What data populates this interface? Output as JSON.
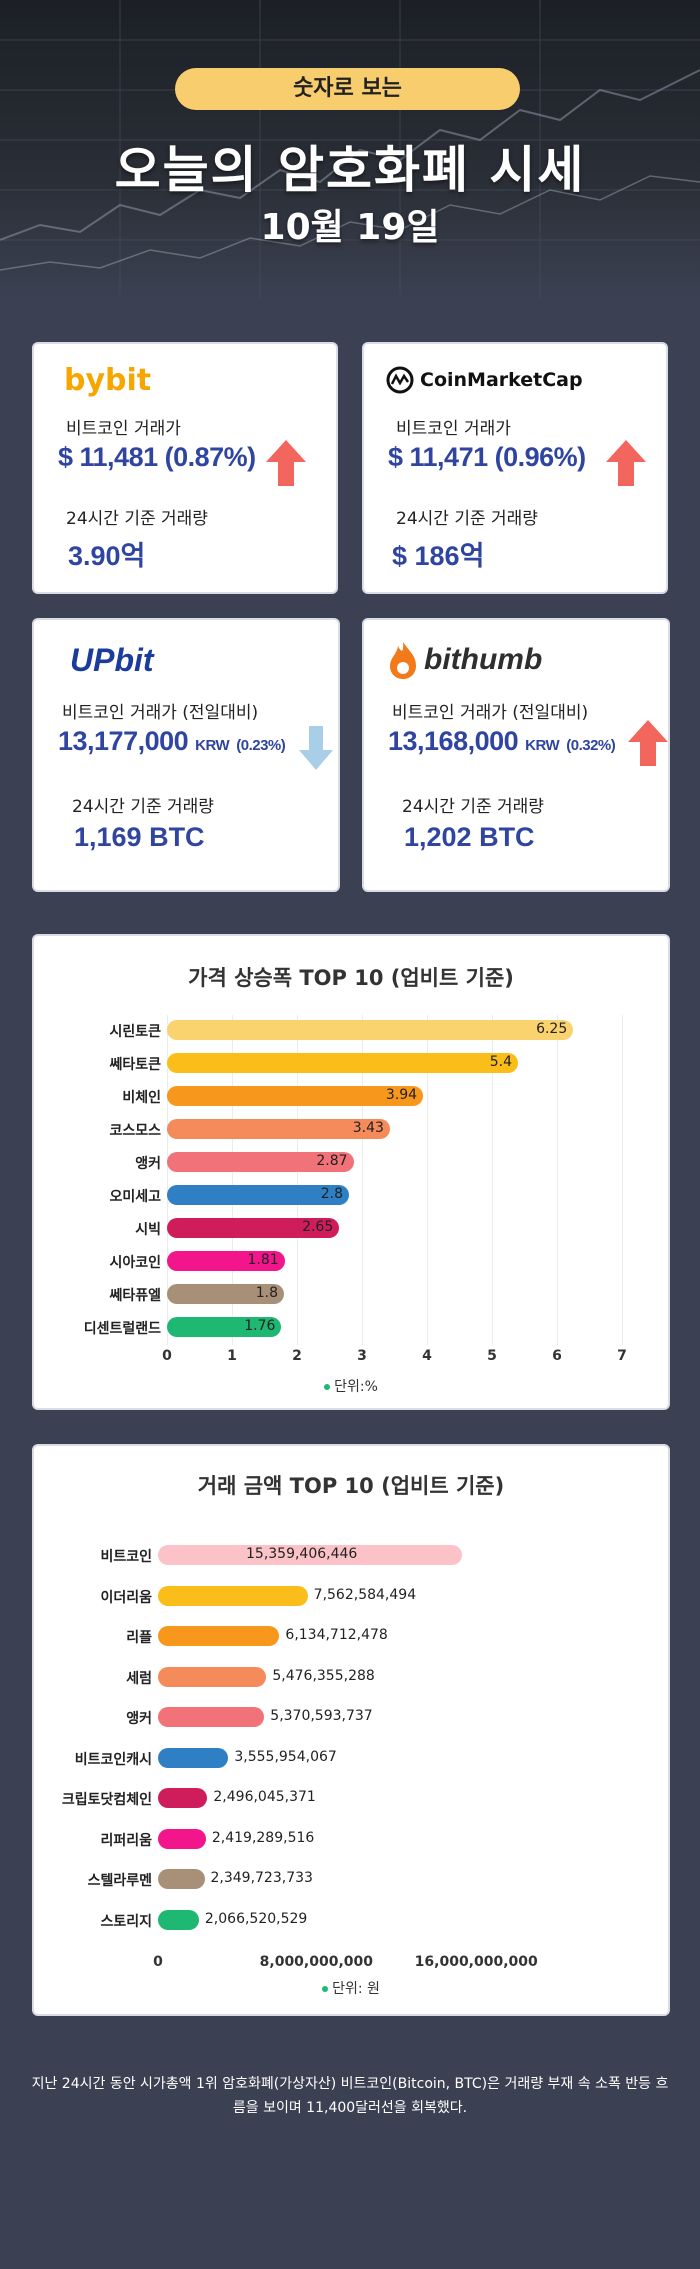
{
  "hero": {
    "pill": "숫자로 보는",
    "title": "오늘의 암호화폐 시세",
    "date": "10월 19일"
  },
  "exchanges": [
    {
      "name": "bybit",
      "price_label": "비트코인 거래가",
      "price": "$ 11,481 (0.87%)",
      "unit": "",
      "pct": "",
      "trend": "up",
      "volume_label": "24시간 기준 거래량",
      "volume": "3.90억"
    },
    {
      "name": "CoinMarketCap",
      "price_label": "비트코인 거래가",
      "price": "$ 11,471 (0.96%)",
      "unit": "",
      "pct": "",
      "trend": "up",
      "volume_label": "24시간 기준 거래량",
      "volume": "$ 186억"
    },
    {
      "name": "UPbit",
      "price_label": "비트코인 거래가 (전일대비)",
      "price": "13,177,000",
      "unit": "KRW",
      "pct": "(0.23%)",
      "trend": "down",
      "volume_label": "24시간 기준 거래량",
      "volume": "1,169 BTC"
    },
    {
      "name": "bithumb",
      "price_label": "비트코인 거래가 (전일대비)",
      "price": "13,168,000",
      "unit": "KRW",
      "pct": "(0.32%)",
      "trend": "up",
      "volume_label": "24시간 기준 거래량",
      "volume": "1,202 BTC"
    }
  ],
  "colors": {
    "up": "#f2665e",
    "down": "#a9cfe8",
    "price": "#2f45a0"
  },
  "chart_data": [
    {
      "type": "bar",
      "orientation": "horizontal",
      "title": "가격 상승폭 TOP 10 (업비트 기준)",
      "categories": [
        "시린토큰",
        "쎄타토큰",
        "비체인",
        "코스모스",
        "앵커",
        "오미세고",
        "시빅",
        "시아코인",
        "쎄타퓨엘",
        "디센트럴랜드"
      ],
      "values": [
        6.25,
        5.4,
        3.94,
        3.43,
        2.87,
        2.8,
        2.65,
        1.81,
        1.8,
        1.76
      ],
      "value_labels": [
        "6.25",
        "5.4",
        "3.94",
        "3.43",
        "2.87",
        "2.8",
        "2.65",
        "1.81",
        "1.8",
        "1.76"
      ],
      "colors": [
        "#fbd36e",
        "#fbbd1a",
        "#f7981c",
        "#f58a5a",
        "#f2727a",
        "#2f7fc4",
        "#cf1d5c",
        "#f2158c",
        "#a88f78",
        "#1fb873"
      ],
      "xlim": [
        0,
        7
      ],
      "xticks": [
        "0",
        "1",
        "2",
        "3",
        "4",
        "5",
        "6",
        "7"
      ],
      "legend": "단위:%"
    },
    {
      "type": "bar",
      "orientation": "horizontal",
      "title": "거래 금액 TOP 10 (업비트 기준)",
      "categories": [
        "비트코인",
        "이더리움",
        "리플",
        "세럼",
        "앵커",
        "비트코인캐시",
        "크립토닷컴체인",
        "리퍼리움",
        "스텔라루멘",
        "스토리지"
      ],
      "values": [
        15359406446,
        7562584494,
        6134712478,
        5476355288,
        5370593737,
        3555954067,
        2496045371,
        2419289516,
        2349723733,
        2066520529
      ],
      "value_labels": [
        "15,359,406,446",
        "7,562,584,494",
        "6,134,712,478",
        "5,476,355,288",
        "5,370,593,737",
        "3,555,954,067",
        "2,496,045,371",
        "2,419,289,516",
        "2,349,723,733",
        "2,066,520,529"
      ],
      "colors": [
        "#fbc3c8",
        "#fbbd1a",
        "#f7981c",
        "#f58a5a",
        "#f2727a",
        "#2f7fc4",
        "#cf1d5c",
        "#f2158c",
        "#a88f78",
        "#1fb873"
      ],
      "xlim": [
        0,
        24000000000
      ],
      "xtick_values": [
        0,
        8000000000,
        16000000000
      ],
      "xticks": [
        "0",
        "8,000,000,000",
        "16,000,000,000"
      ],
      "legend": "단위: 원"
    }
  ],
  "footnote": "지난 24시간 동안 시가총액 1위 암호화폐(가상자산) 비트코인(Bitcoin, BTC)은 거래량 부재 속 소폭 반등 흐름을 보이며 11,400달러선을 회복했다."
}
